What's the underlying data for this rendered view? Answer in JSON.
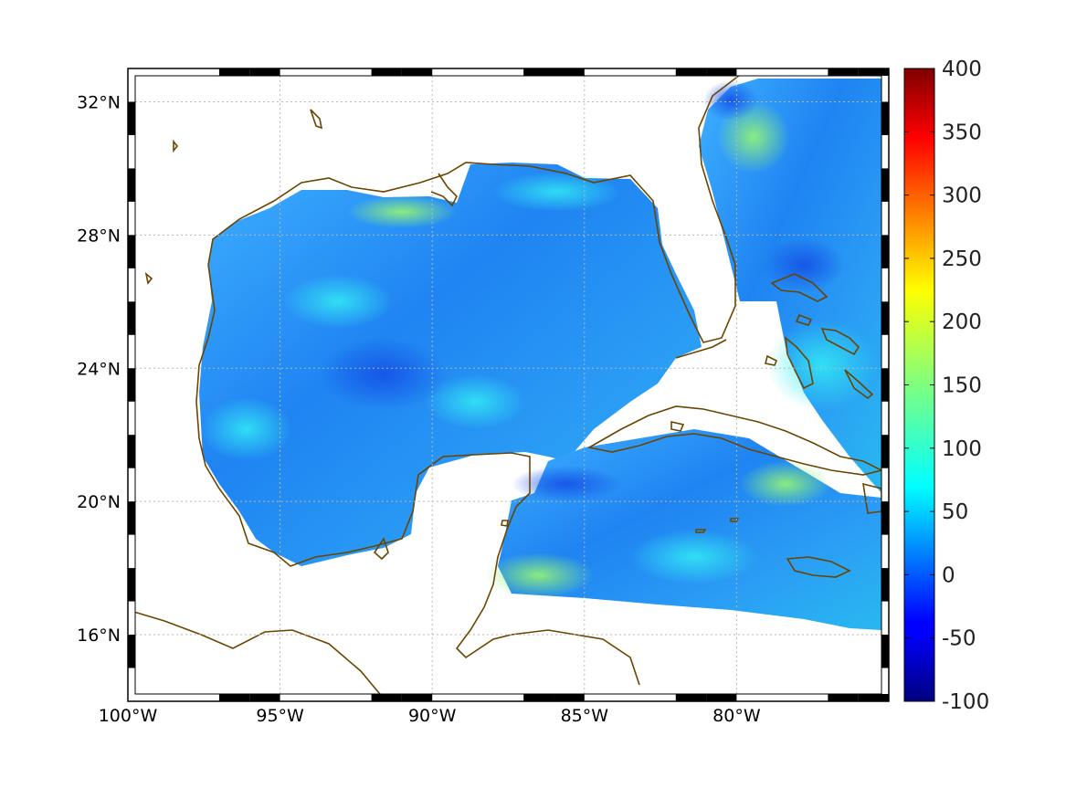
{
  "map": {
    "projection": "equidistant-cylindrical",
    "lon_range": [
      -100,
      -75
    ],
    "lat_range": [
      14,
      33
    ],
    "gridlines": true,
    "frame": "alternating-black-white",
    "x_ticks": [
      {
        "value": -100,
        "label": "100°W"
      },
      {
        "value": -95,
        "label": "95°W"
      },
      {
        "value": -90,
        "label": "90°W"
      },
      {
        "value": -85,
        "label": "85°W"
      },
      {
        "value": -80,
        "label": "80°W"
      }
    ],
    "y_ticks": [
      {
        "value": 16,
        "label": "16°N"
      },
      {
        "value": 20,
        "label": "20°N"
      },
      {
        "value": 24,
        "label": "24°N"
      },
      {
        "value": 28,
        "label": "28°N"
      },
      {
        "value": 32,
        "label": "32°N"
      }
    ],
    "coastline_color": "#6b4500",
    "land_color": "#ffffff"
  },
  "chart_data": {
    "type": "heatmap",
    "title": "",
    "xlabel": "",
    "ylabel": "",
    "colormap": "jet",
    "clim": [
      -100,
      400
    ],
    "typical_value_range": [
      40,
      180
    ],
    "colorbar": {
      "ticks": [
        {
          "value": 400,
          "label": "400"
        },
        {
          "value": 350,
          "label": "350"
        },
        {
          "value": 300,
          "label": "300"
        },
        {
          "value": 250,
          "label": "250"
        },
        {
          "value": 200,
          "label": "200"
        },
        {
          "value": 150,
          "label": "150"
        },
        {
          "value": 100,
          "label": "100"
        },
        {
          "value": 50,
          "label": "50"
        },
        {
          "value": 0,
          "label": "0"
        },
        {
          "value": -50,
          "label": "-50"
        },
        {
          "value": -100,
          "label": "-100"
        }
      ]
    }
  }
}
